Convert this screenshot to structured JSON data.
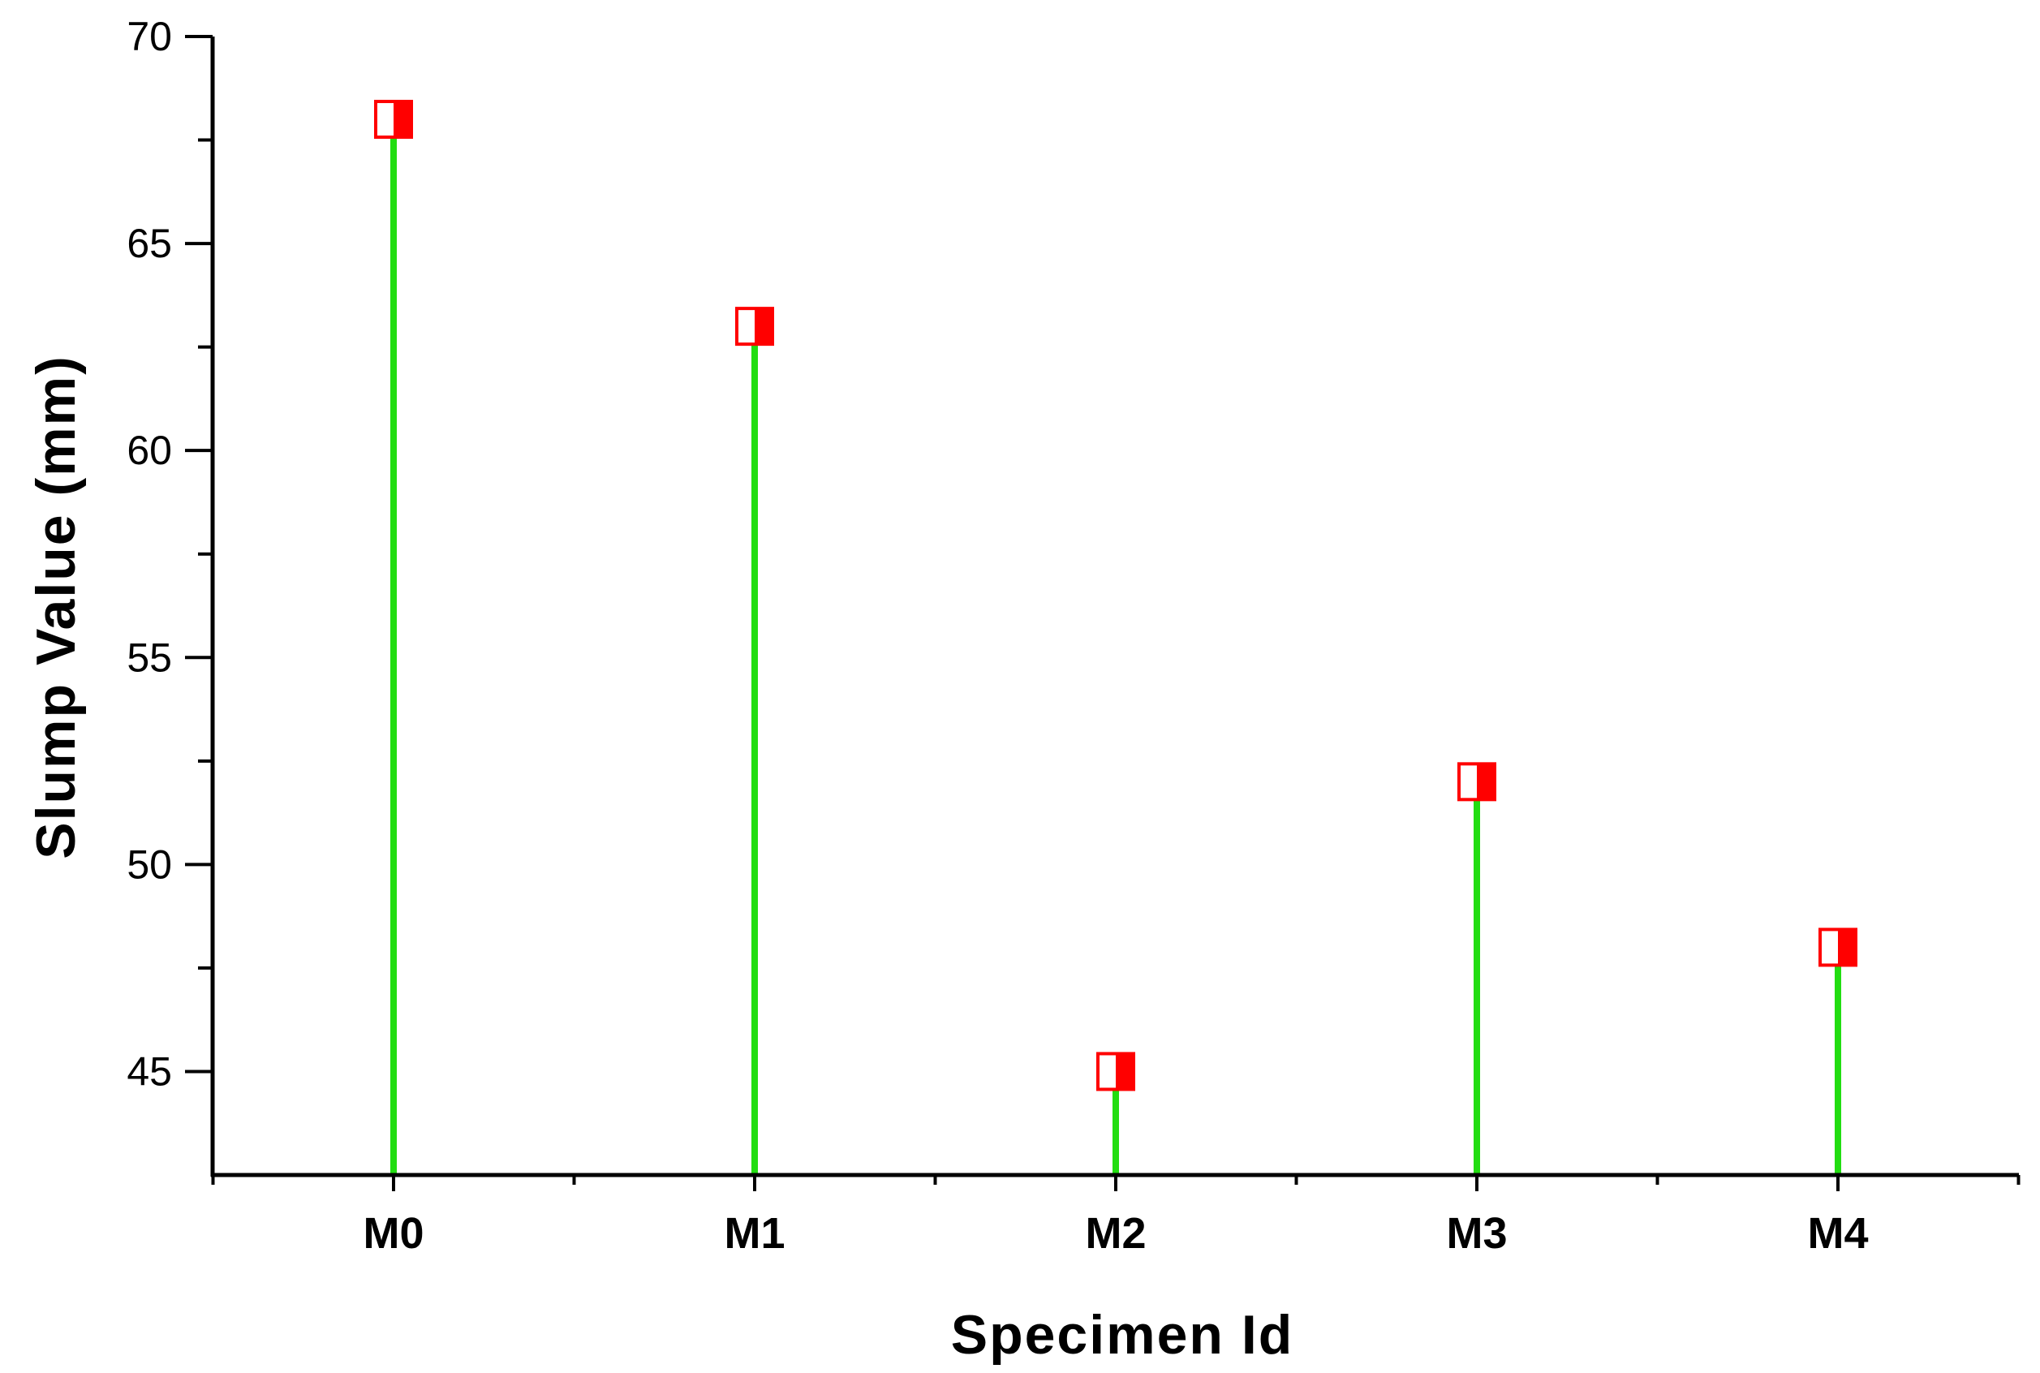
{
  "chart_data": {
    "type": "scatter",
    "style": "drop-line",
    "categories": [
      "M0",
      "M1",
      "M2",
      "M3",
      "M4"
    ],
    "values": [
      68,
      63,
      45,
      52,
      48
    ],
    "xlabel": "Specimen Id",
    "ylabel": "Slump Value (mm)",
    "ylim": [
      42.5,
      70
    ],
    "yticks": [
      45,
      50,
      55,
      60,
      65,
      70
    ],
    "grid": false,
    "legend": "none",
    "colors": {
      "stem": "#22dd11",
      "marker": "#ff0000",
      "marker_half": "#ffffff",
      "axis": "#000000"
    }
  }
}
